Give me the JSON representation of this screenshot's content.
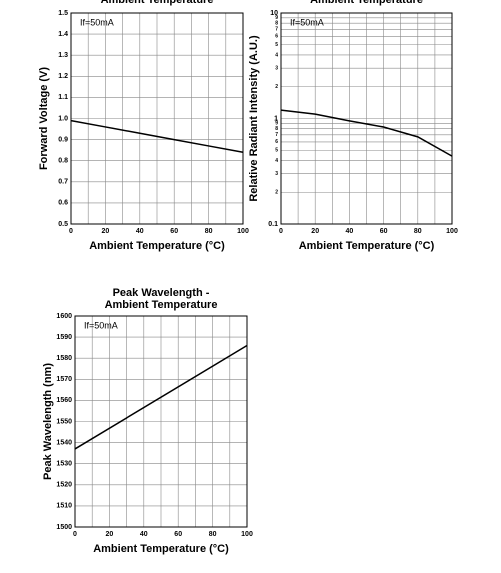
{
  "chart_data": [
    {
      "type": "line",
      "title_lines": [
        "Ambient Temperature"
      ],
      "annotation": "If=50mA",
      "x_label": "Ambient Temperature (°C)",
      "y_label": "Forward Voltage (V)",
      "x": [
        0,
        20,
        40,
        60,
        80,
        100
      ],
      "values": [
        0.99,
        0.96,
        0.93,
        0.9,
        0.87,
        0.84
      ],
      "color": "#000000",
      "xlim": [
        0,
        100
      ],
      "xticks": [
        0,
        20,
        40,
        60,
        80,
        100
      ],
      "ylim": [
        0.5,
        1.5
      ],
      "yticks": [
        0.5,
        0.6,
        0.7,
        0.8,
        0.9,
        {
          "value": 1,
          "label": "1.0"
        },
        1.1,
        1.2,
        1.3,
        1.4,
        1.5
      ],
      "grid": true
    },
    {
      "type": "line",
      "title_lines": [
        "Ambient Temperature"
      ],
      "annotation": "If=50mA",
      "x_label": "Ambient Temperature (°C)",
      "y_label": "Relative Radiant Intensity (A.U.)",
      "x": [
        0,
        20,
        40,
        60,
        80,
        100
      ],
      "values": [
        1.2,
        1.1,
        0.95,
        0.83,
        0.67,
        0.44
      ],
      "color": "#000000",
      "xlim": [
        0,
        100
      ],
      "xticks": [
        0,
        20,
        40,
        60,
        80,
        100
      ],
      "log_y": true,
      "ylim": [
        0.1,
        10
      ],
      "yticks": [
        0.1,
        {
          "value": 0.2,
          "label": "2"
        },
        {
          "value": 0.3,
          "label": "3"
        },
        {
          "value": 0.4,
          "label": "4"
        },
        {
          "value": 0.5,
          "label": "5"
        },
        {
          "value": 0.6,
          "label": "6"
        },
        {
          "value": 0.7,
          "label": "7"
        },
        {
          "value": 0.8,
          "label": "8"
        },
        {
          "value": 0.9,
          "label": "9"
        },
        1,
        {
          "value": 2,
          "label": "2"
        },
        {
          "value": 3,
          "label": "3"
        },
        {
          "value": 4,
          "label": "4"
        },
        {
          "value": 5,
          "label": "5"
        },
        {
          "value": 6,
          "label": "6"
        },
        {
          "value": 7,
          "label": "7"
        },
        {
          "value": 8,
          "label": "8"
        },
        {
          "value": 9,
          "label": "9"
        },
        10
      ],
      "grid": true
    },
    {
      "type": "line",
      "title_lines": [
        "Peak Wavelength -",
        "Ambient Temperature"
      ],
      "annotation": "If=50mA",
      "x_label": "Ambient Temperature (°C)",
      "y_label": "Peak Wavelength (nm)",
      "x": [
        0,
        100
      ],
      "values": [
        1537,
        1586
      ],
      "color": "#000000",
      "xlim": [
        0,
        100
      ],
      "xticks": [
        0,
        20,
        40,
        60,
        80,
        100
      ],
      "ylim": [
        1500,
        1600
      ],
      "yticks": [
        1500,
        1510,
        1520,
        1530,
        1540,
        1550,
        1560,
        1570,
        1580,
        1590,
        1600
      ],
      "grid": true
    }
  ]
}
